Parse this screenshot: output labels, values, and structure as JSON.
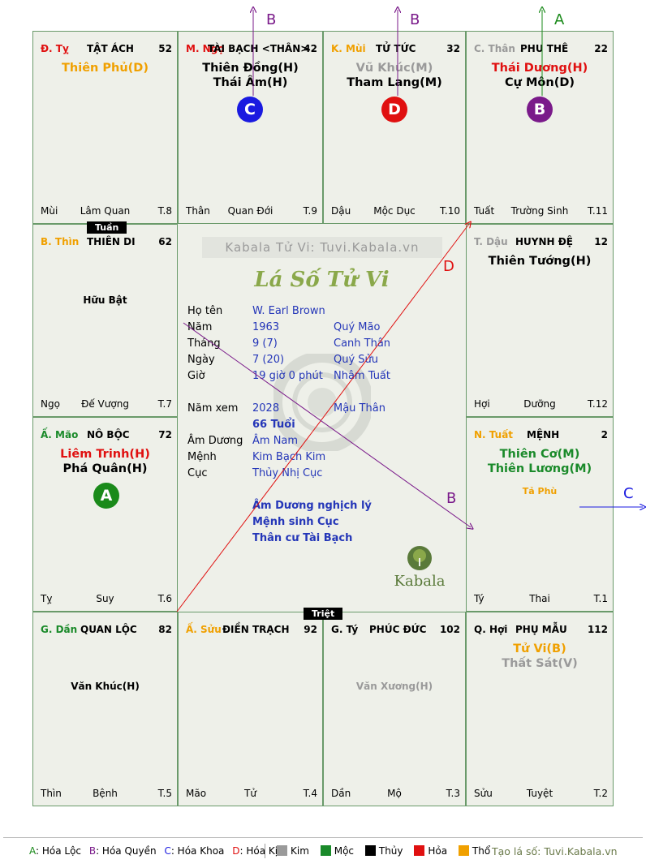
{
  "cells": {
    "ty_top": {
      "branch": "Đ. Tỵ",
      "house": "TẬT ÁCH",
      "num": "52",
      "stars": [
        "Thiên Phủ(D)"
      ],
      "bl": "Mùi",
      "bc": "Lâm Quan",
      "br": "T.8"
    },
    "ngo_top": {
      "branch": "M. Ngọ",
      "house": "TÀI BẠCH <THÂN>",
      "num": "42",
      "stars": [
        "Thiên Đồng(H)",
        "Thái Âm(H)"
      ],
      "circle": "C",
      "bl": "Thân",
      "bc": "Quan Đới",
      "br": "T.9"
    },
    "mui_top": {
      "branch": "K. Mùi",
      "house": "TỬ TỨC",
      "num": "32",
      "stars": [
        "Vũ Khúc(M)",
        "Tham Lang(M)"
      ],
      "circle": "D",
      "bl": "Dậu",
      "bc": "Mộc Dục",
      "br": "T.10"
    },
    "than_top": {
      "branch": "C. Thân",
      "house": "PHU THÊ",
      "num": "22",
      "stars": [
        "Thái Dương(H)",
        "Cự Môn(D)"
      ],
      "circle": "B",
      "bl": "Tuất",
      "bc": "Trường Sinh",
      "br": "T.11"
    },
    "thin": {
      "branch": "B. Thìn",
      "house": "THIÊN DI",
      "num": "62",
      "minor": "Hữu Bật",
      "bl": "Ngọ",
      "bc": "Đế Vượng",
      "br": "T.7"
    },
    "dau": {
      "branch": "T. Dậu",
      "house": "HUYNH ĐỆ",
      "num": "12",
      "stars": [
        "Thiên Tướng(H)"
      ],
      "bl": "Hợi",
      "bc": "Dưỡng",
      "br": "T.12"
    },
    "mao": {
      "branch": "Ấ. Mão",
      "house": "NÔ BỘC",
      "num": "72",
      "stars": [
        "Liêm Trinh(H)",
        "Phá Quân(H)"
      ],
      "circle": "A",
      "bl": "Tỵ",
      "bc": "Suy",
      "br": "T.6"
    },
    "tuat": {
      "branch": "N. Tuất",
      "house": "MỆNH",
      "num": "2",
      "stars": [
        "Thiên Cơ(M)",
        "Thiên Lương(M)"
      ],
      "minor": "Tả Phù",
      "bl": "Tý",
      "bc": "Thai",
      "br": "T.1"
    },
    "dan": {
      "branch": "G. Dần",
      "house": "QUAN LỘC",
      "num": "82",
      "minor": "Văn Khúc(H)",
      "bl": "Thìn",
      "bc": "Bệnh",
      "br": "T.5"
    },
    "suu": {
      "branch": "Ấ. Sửu",
      "house": "ĐIỀN TRẠCH",
      "num": "92",
      "bl": "Mão",
      "bc": "Tử",
      "br": "T.4"
    },
    "ty_bot": {
      "branch": "G. Tý",
      "house": "PHÚC ĐỨC",
      "num": "102",
      "minor": "Văn Xương(H)",
      "bl": "Dần",
      "bc": "Mộ",
      "br": "T.3"
    },
    "hoi": {
      "branch": "Q. Hợi",
      "house": "PHỤ MẪU",
      "num": "112",
      "stars": [
        "Tử Vi(B)",
        "Thất Sát(V)"
      ],
      "bl": "Sửu",
      "bc": "Tuyệt",
      "br": "T.2"
    }
  },
  "tags": {
    "tuan": "Tuần",
    "triet": "Triệt"
  },
  "center": {
    "watermark": "Kabala Tử Vi: Tuvi.Kabala.vn",
    "title": "Lá Số Tử Vi",
    "rows": [
      {
        "label": "Họ tên",
        "v1": "W. Earl Brown",
        "v2": ""
      },
      {
        "label": "Năm",
        "v1": "1963",
        "v2": "Quý Mão"
      },
      {
        "label": "Tháng",
        "v1": "9  (7)",
        "v2": "Canh Thân"
      },
      {
        "label": "Ngày",
        "v1": "7  (20)",
        "v2": "Quý Sửu"
      },
      {
        "label": "Giờ",
        "v1": "19 giờ 0 phút",
        "v2": "Nhâm Tuất"
      },
      {
        "label": "Năm xem",
        "v1": "2028",
        "v2": "Mậu Thân"
      },
      {
        "label": "",
        "v1": "66 Tuổi",
        "v2": ""
      },
      {
        "label": "Âm Dương",
        "v1": "Âm Nam",
        "v2": ""
      },
      {
        "label": "Mệnh",
        "v1": "Kim Bạch Kim",
        "v2": ""
      },
      {
        "label": "Cục",
        "v1": "Thủy Nhị Cục",
        "v2": ""
      }
    ],
    "notes": [
      "Âm Dương nghịch lý",
      "Mệnh sinh Cục",
      "Thân cư Tài Bạch"
    ],
    "logo_text": "Kabala"
  },
  "arrows": {
    "top1": "B",
    "top2": "B",
    "top3": "A",
    "right": "C",
    "diag_d": "D",
    "diag_b": "B"
  },
  "legend": {
    "hoa": [
      {
        "k": "A",
        "t": ": Hóa Lộc"
      },
      {
        "k": "B",
        "t": ": Hóa Quyền"
      },
      {
        "k": "C",
        "t": ": Hóa Khoa"
      },
      {
        "k": "D",
        "t": ": Hóa Kị"
      }
    ],
    "elements": [
      "Kim",
      "Mộc",
      "Thủy",
      "Hỏa",
      "Thổ"
    ],
    "site": "Tạo lá số: Tuvi.Kabala.vn"
  },
  "colors": {
    "kim": "#9a9a9a",
    "moc": "#1a8a2a",
    "thuy": "#000000",
    "hoa": "#e01010",
    "tho": "#f0a000",
    "grid": "#6a9a6a",
    "lucky": "#1a8a1a",
    "quyen": "#7a1a8a",
    "khoa": "#1a1ae0",
    "ki": "#e01010"
  }
}
